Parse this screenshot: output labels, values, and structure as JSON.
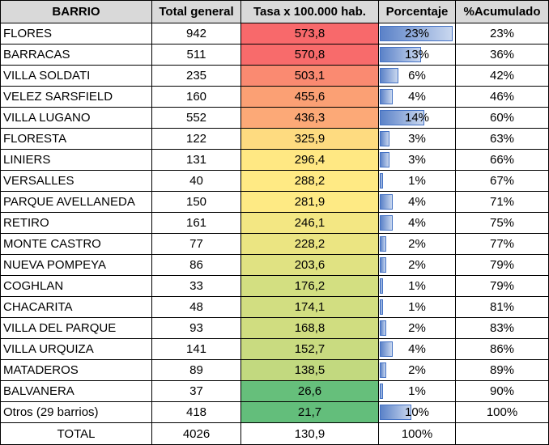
{
  "colors": {
    "header_bg": "#d9d9d9",
    "bar_fill": "#5b82c8",
    "bar_border": "#4472c4",
    "scale_high": "#f8696b",
    "scale_mid": "#ffeb84",
    "scale_low": "#63be7b"
  },
  "headers": {
    "barrio": "BARRIO",
    "total": "Total general",
    "tasa": "Tasa x 100.000 hab.",
    "porcentaje": "Porcentaje",
    "acumulado": "%Acumulado"
  },
  "rows": [
    {
      "barrio": "FLORES",
      "total": "942",
      "tasa": "573,8",
      "porcentaje": "23%",
      "acumulado": "23%",
      "bar_fraction": 0.23,
      "color": "#f8696b"
    },
    {
      "barrio": "BARRACAS",
      "total": "511",
      "tasa": "570,8",
      "porcentaje": "13%",
      "acumulado": "36%",
      "bar_fraction": 0.13,
      "color": "#f86b6b"
    },
    {
      "barrio": "VILLA SOLDATI",
      "total": "235",
      "tasa": "503,1",
      "porcentaje": "6%",
      "acumulado": "42%",
      "bar_fraction": 0.06,
      "color": "#fa8a71"
    },
    {
      "barrio": "VELEZ SARSFIELD",
      "total": "160",
      "tasa": "455,6",
      "porcentaje": "4%",
      "acumulado": "46%",
      "bar_fraction": 0.04,
      "color": "#fba074"
    },
    {
      "barrio": "VILLA LUGANO",
      "total": "552",
      "tasa": "436,3",
      "porcentaje": "14%",
      "acumulado": "60%",
      "bar_fraction": 0.14,
      "color": "#fca977"
    },
    {
      "barrio": "FLORESTA",
      "total": "122",
      "tasa": "325,9",
      "porcentaje": "3%",
      "acumulado": "63%",
      "bar_fraction": 0.03,
      "color": "#fedb80"
    },
    {
      "barrio": "LINIERS",
      "total": "131",
      "tasa": "296,4",
      "porcentaje": "3%",
      "acumulado": "66%",
      "bar_fraction": 0.03,
      "color": "#ffe883"
    },
    {
      "barrio": "VERSALLES",
      "total": "40",
      "tasa": "288,2",
      "porcentaje": "1%",
      "acumulado": "67%",
      "bar_fraction": 0.01,
      "color": "#ffea84"
    },
    {
      "barrio": "PARQUE AVELLANEDA",
      "total": "150",
      "tasa": "281,9",
      "porcentaje": "4%",
      "acumulado": "71%",
      "bar_fraction": 0.04,
      "color": "#feea84"
    },
    {
      "barrio": "RETIRO",
      "total": "161",
      "tasa": "246,1",
      "porcentaje": "4%",
      "acumulado": "75%",
      "bar_fraction": 0.04,
      "color": "#f3e783"
    },
    {
      "barrio": "MONTE CASTRO",
      "total": "77",
      "tasa": "228,2",
      "porcentaje": "2%",
      "acumulado": "77%",
      "bar_fraction": 0.02,
      "color": "#ebe582"
    },
    {
      "barrio": "NUEVA POMPEYA",
      "total": "86",
      "tasa": "203,6",
      "porcentaje": "2%",
      "acumulado": "79%",
      "bar_fraction": 0.02,
      "color": "#e0e282"
    },
    {
      "barrio": "COGHLAN",
      "total": "33",
      "tasa": "176,2",
      "porcentaje": "1%",
      "acumulado": "79%",
      "bar_fraction": 0.01,
      "color": "#d3df81"
    },
    {
      "barrio": "CHACARITA",
      "total": "48",
      "tasa": "174,1",
      "porcentaje": "1%",
      "acumulado": "81%",
      "bar_fraction": 0.01,
      "color": "#d2de81"
    },
    {
      "barrio": "VILLA DEL PARQUE",
      "total": "93",
      "tasa": "168,8",
      "porcentaje": "2%",
      "acumulado": "83%",
      "bar_fraction": 0.02,
      "color": "#d0dd80"
    },
    {
      "barrio": "VILLA URQUIZA",
      "total": "141",
      "tasa": "152,7",
      "porcentaje": "4%",
      "acumulado": "86%",
      "bar_fraction": 0.04,
      "color": "#c9db80"
    },
    {
      "barrio": "MATADEROS",
      "total": "89",
      "tasa": "138,5",
      "porcentaje": "2%",
      "acumulado": "89%",
      "bar_fraction": 0.02,
      "color": "#c2d97f"
    },
    {
      "barrio": "BALVANERA",
      "total": "37",
      "tasa": "26,6",
      "porcentaje": "1%",
      "acumulado": "90%",
      "bar_fraction": 0.01,
      "color": "#66bf7b"
    },
    {
      "barrio": "Otros (29 barrios)",
      "total": "418",
      "tasa": "21,7",
      "porcentaje": "10%",
      "acumulado": "100%",
      "bar_fraction": 0.1,
      "color": "#63be7b"
    }
  ],
  "total_row": {
    "barrio": "TOTAL",
    "total": "4026",
    "tasa": "130,9",
    "porcentaje": "100%",
    "acumulado": ""
  }
}
